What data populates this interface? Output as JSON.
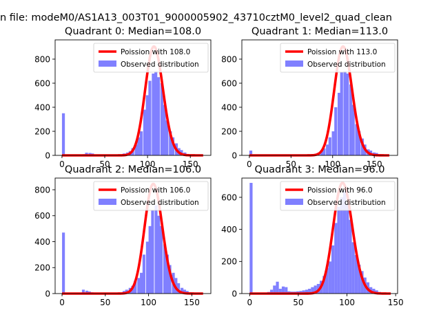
{
  "figure": {
    "suptitle": "n file: modeM0/AS1A13_003T01_9000005902_43710cztM0_level2_quad_clean"
  },
  "chart_data": [
    {
      "type": "bar",
      "title": "Quadrant 0: Median=108.0",
      "xlim": [
        -8,
        174
      ],
      "ylim": [
        0,
        960
      ],
      "xticks": [
        0,
        50,
        100,
        150
      ],
      "yticks": [
        0,
        200,
        400,
        600,
        800
      ],
      "series": [
        {
          "name": "Observed distribution",
          "kind": "histogram",
          "color": "#8080ff",
          "bin_width": 3.4,
          "bins": [
            [
              0,
              350
            ],
            [
              24,
              10
            ],
            [
              27,
              22
            ],
            [
              31,
              20
            ],
            [
              34,
              16
            ],
            [
              41,
              8
            ],
            [
              51,
              5
            ],
            [
              68,
              6
            ],
            [
              71,
              16
            ],
            [
              75,
              24
            ],
            [
              78,
              36
            ],
            [
              81,
              60
            ],
            [
              85,
              90
            ],
            [
              88,
              150
            ],
            [
              91,
              200
            ],
            [
              95,
              380
            ],
            [
              98,
              500
            ],
            [
              101,
              620
            ],
            [
              105,
              680
            ],
            [
              108,
              700
            ],
            [
              111,
              650
            ],
            [
              115,
              600
            ],
            [
              118,
              420
            ],
            [
              121,
              290
            ],
            [
              125,
              200
            ],
            [
              128,
              150
            ],
            [
              132,
              100
            ],
            [
              135,
              60
            ],
            [
              138,
              44
            ],
            [
              142,
              24
            ],
            [
              145,
              12
            ],
            [
              148,
              6
            ],
            [
              155,
              3
            ]
          ]
        },
        {
          "name": "Poission with 108.0",
          "kind": "line",
          "color": "#ff0000",
          "lambda": 108.0,
          "peak": 905,
          "x_start": 0,
          "x_end": 165
        }
      ],
      "legend": "top-right"
    },
    {
      "type": "bar",
      "title": "Quadrant 1: Median=113.0",
      "xlim": [
        -9,
        178
      ],
      "ylim": [
        0,
        960
      ],
      "xticks": [
        0,
        50,
        100,
        150
      ],
      "yticks": [
        0,
        200,
        400,
        600,
        800
      ],
      "series": [
        {
          "name": "Observed distribution",
          "kind": "histogram",
          "color": "#8080ff",
          "bin_width": 3.5,
          "bins": [
            [
              0,
              40
            ],
            [
              63,
              4
            ],
            [
              74,
              6
            ],
            [
              78,
              14
            ],
            [
              81,
              22
            ],
            [
              85,
              38
            ],
            [
              88,
              58
            ],
            [
              92,
              90
            ],
            [
              95,
              150
            ],
            [
              99,
              200
            ],
            [
              102,
              400
            ],
            [
              106,
              520
            ],
            [
              109,
              690
            ],
            [
              113,
              700
            ],
            [
              116,
              680
            ],
            [
              120,
              590
            ],
            [
              123,
              420
            ],
            [
              127,
              260
            ],
            [
              130,
              200
            ],
            [
              134,
              140
            ],
            [
              137,
              90
            ],
            [
              141,
              50
            ],
            [
              144,
              40
            ],
            [
              148,
              24
            ],
            [
              151,
              20
            ],
            [
              155,
              10
            ],
            [
              158,
              5
            ]
          ]
        },
        {
          "name": "Poission with 113.0",
          "kind": "line",
          "color": "#ff0000",
          "lambda": 113.0,
          "peak": 905,
          "x_start": 0,
          "x_end": 168
        }
      ],
      "legend": "top-right"
    },
    {
      "type": "bar",
      "title": "Quadrant 2: Median=106.0",
      "xlim": [
        -8,
        172
      ],
      "ylim": [
        0,
        890
      ],
      "xticks": [
        0,
        50,
        100,
        150
      ],
      "yticks": [
        0,
        200,
        400,
        600,
        800
      ],
      "series": [
        {
          "name": "Observed distribution",
          "kind": "histogram",
          "color": "#8080ff",
          "bin_width": 3.3,
          "bins": [
            [
              0,
              470
            ],
            [
              20,
              4
            ],
            [
              23,
              30
            ],
            [
              27,
              22
            ],
            [
              30,
              16
            ],
            [
              33,
              10
            ],
            [
              37,
              8
            ],
            [
              43,
              6
            ],
            [
              50,
              5
            ],
            [
              57,
              4
            ],
            [
              63,
              8
            ],
            [
              70,
              20
            ],
            [
              73,
              30
            ],
            [
              77,
              44
            ],
            [
              80,
              60
            ],
            [
              83,
              100
            ],
            [
              87,
              120
            ],
            [
              90,
              160
            ],
            [
              93,
              300
            ],
            [
              97,
              400
            ],
            [
              100,
              520
            ],
            [
              103,
              640
            ],
            [
              107,
              680
            ],
            [
              110,
              600
            ],
            [
              113,
              520
            ],
            [
              117,
              380
            ],
            [
              120,
              300
            ],
            [
              123,
              220
            ],
            [
              127,
              160
            ],
            [
              130,
              120
            ],
            [
              133,
              80
            ],
            [
              137,
              44
            ],
            [
              140,
              30
            ],
            [
              143,
              20
            ],
            [
              147,
              10
            ],
            [
              150,
              5
            ],
            [
              153,
              3
            ]
          ]
        },
        {
          "name": "Poission with 106.0",
          "kind": "line",
          "color": "#ff0000",
          "lambda": 106.0,
          "peak": 845,
          "x_start": 0,
          "x_end": 163
        }
      ],
      "legend": "top-right"
    },
    {
      "type": "bar",
      "title": "Quadrant 3: Median=96.0",
      "xlim": [
        -8,
        152
      ],
      "ylim": [
        0,
        720
      ],
      "xticks": [
        0,
        50,
        100,
        150
      ],
      "yticks": [
        0,
        200,
        400,
        600
      ],
      "series": [
        {
          "name": "Observed distribution",
          "kind": "histogram",
          "color": "#8080ff",
          "bin_width": 3.0,
          "bins": [
            [
              0,
              690
            ],
            [
              18,
              10
            ],
            [
              21,
              24
            ],
            [
              24,
              50
            ],
            [
              27,
              74
            ],
            [
              30,
              30
            ],
            [
              33,
              44
            ],
            [
              36,
              40
            ],
            [
              39,
              14
            ],
            [
              42,
              12
            ],
            [
              45,
              12
            ],
            [
              48,
              14
            ],
            [
              51,
              16
            ],
            [
              54,
              20
            ],
            [
              57,
              24
            ],
            [
              60,
              30
            ],
            [
              63,
              40
            ],
            [
              66,
              50
            ],
            [
              69,
              60
            ],
            [
              72,
              80
            ],
            [
              75,
              110
            ],
            [
              78,
              160
            ],
            [
              81,
              200
            ],
            [
              84,
              300
            ],
            [
              87,
              440
            ],
            [
              90,
              540
            ],
            [
              93,
              600
            ],
            [
              96,
              640
            ],
            [
              99,
              560
            ],
            [
              102,
              460
            ],
            [
              105,
              320
            ],
            [
              108,
              240
            ],
            [
              111,
              180
            ],
            [
              114,
              140
            ],
            [
              117,
              100
            ],
            [
              120,
              70
            ],
            [
              123,
              40
            ],
            [
              126,
              30
            ],
            [
              129,
              20
            ],
            [
              132,
              10
            ],
            [
              135,
              5
            ]
          ]
        },
        {
          "name": "Poission with 96.0",
          "kind": "line",
          "color": "#ff0000",
          "lambda": 96.0,
          "peak": 690,
          "x_start": 0,
          "x_end": 145
        }
      ],
      "legend": "top-right"
    }
  ]
}
